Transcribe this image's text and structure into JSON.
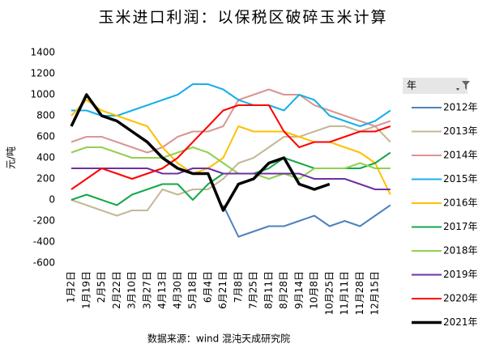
{
  "chart_data": {
    "type": "line",
    "title": "玉米进口利润：以保税区破碎玉米计算",
    "y_label": "元/吨",
    "source": "数据来源：wind 混沌天成研究院",
    "legend_title": "年",
    "categories": [
      "1月2日",
      "1月19日",
      "2月5日",
      "2月22日",
      "3月10日",
      "3月27日",
      "4月13日",
      "4月30日",
      "5月18日",
      "6月4日",
      "6月21日",
      "7月8日",
      "7月25日",
      "8月11日",
      "8月28日",
      "9月14日",
      "10月8日",
      "10月25日",
      "11月11日",
      "11月28日",
      "12月15日",
      null
    ],
    "ylim": [
      -600,
      1400
    ],
    "yticks": [
      -600,
      -400,
      -200,
      0,
      200,
      400,
      600,
      800,
      1000,
      1200,
      1400
    ],
    "legend": "right",
    "series": [
      {
        "name": "2012年",
        "color": "#4f81bd",
        "width": 2,
        "values": [
          null,
          null,
          null,
          null,
          null,
          null,
          null,
          null,
          null,
          null,
          -50,
          -350,
          -300,
          -250,
          -250,
          -200,
          -150,
          -250,
          -200,
          -250,
          -150,
          -50
        ]
      },
      {
        "name": "2013年",
        "color": "#c4b896",
        "width": 2,
        "values": [
          0,
          -50,
          -100,
          -150,
          -100,
          -100,
          100,
          50,
          100,
          100,
          200,
          350,
          400,
          500,
          600,
          600,
          650,
          700,
          700,
          650,
          700,
          550
        ]
      },
      {
        "name": "2014年",
        "color": "#d99694",
        "width": 2,
        "values": [
          550,
          600,
          600,
          550,
          500,
          450,
          500,
          600,
          650,
          650,
          700,
          950,
          1000,
          1050,
          1000,
          1000,
          900,
          850,
          800,
          750,
          700,
          750
        ]
      },
      {
        "name": "2015年",
        "color": "#17b0e8",
        "width": 2,
        "values": [
          850,
          850,
          800,
          800,
          850,
          900,
          950,
          1000,
          1100,
          1100,
          1050,
          950,
          900,
          900,
          850,
          1000,
          950,
          800,
          750,
          700,
          750,
          850
        ]
      },
      {
        "name": "2016年",
        "color": "#ffc000",
        "width": 2,
        "values": [
          800,
          950,
          850,
          800,
          750,
          700,
          500,
          350,
          250,
          300,
          400,
          700,
          650,
          650,
          650,
          600,
          550,
          550,
          500,
          450,
          350,
          50
        ]
      },
      {
        "name": "2017年",
        "color": "#16a84a",
        "width": 2,
        "values": [
          0,
          50,
          0,
          -50,
          50,
          100,
          150,
          150,
          0,
          150,
          250,
          250,
          250,
          300,
          400,
          350,
          300,
          300,
          300,
          300,
          350,
          450
        ]
      },
      {
        "name": "2018年",
        "color": "#92d050",
        "width": 2,
        "values": [
          450,
          500,
          500,
          450,
          400,
          400,
          400,
          450,
          500,
          450,
          350,
          250,
          250,
          200,
          250,
          200,
          300,
          300,
          300,
          350,
          300,
          300
        ]
      },
      {
        "name": "2019年",
        "color": "#7030a0",
        "width": 2,
        "values": [
          300,
          300,
          300,
          300,
          300,
          300,
          250,
          250,
          300,
          300,
          250,
          250,
          250,
          250,
          250,
          250,
          200,
          200,
          200,
          150,
          100,
          100
        ]
      },
      {
        "name": "2020年",
        "color": "#ff0000",
        "width": 2,
        "values": [
          100,
          200,
          300,
          250,
          200,
          250,
          300,
          400,
          550,
          700,
          850,
          900,
          900,
          900,
          650,
          500,
          550,
          550,
          600,
          650,
          650,
          700
        ]
      },
      {
        "name": "2021年",
        "color": "#000000",
        "width": 3.5,
        "values": [
          700,
          1000,
          800,
          750,
          650,
          550,
          400,
          300,
          250,
          250,
          -100,
          150,
          200,
          350,
          400,
          150,
          100,
          150,
          null,
          null,
          null,
          null
        ]
      }
    ]
  }
}
